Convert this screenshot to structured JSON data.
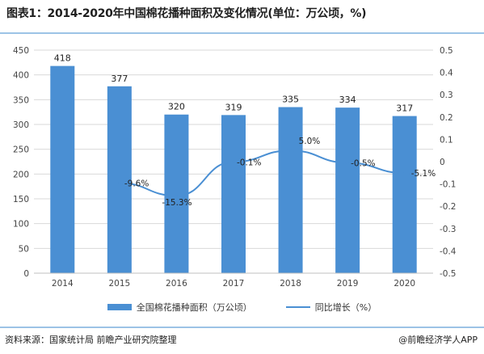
{
  "title": "图表1：2014-2020年中国棉花播种面积及变化情况(单位：万公顷，%)",
  "source": "资料来源：国家统计局 前瞻产业研究院整理",
  "brand": "@前瞻经济学人APP",
  "legend": {
    "bar": "全国棉花播种面积（万公顷）",
    "line": "同比增长（%）"
  },
  "colors": {
    "bar": "#4a8fd3",
    "line": "#4a8fd3",
    "grid": "#d9d9d9"
  },
  "chart_data": {
    "type": "bar",
    "categories": [
      "2014",
      "2015",
      "2016",
      "2017",
      "2018",
      "2019",
      "2020"
    ],
    "series": [
      {
        "name": "全国棉花播种面积（万公顷）",
        "type": "bar",
        "axis": "left",
        "values": [
          418,
          377,
          320,
          319,
          335,
          334,
          317
        ]
      },
      {
        "name": "同比增长（%）",
        "type": "line",
        "axis": "right",
        "values": [
          null,
          -0.096,
          -0.153,
          -0.001,
          0.05,
          -0.005,
          -0.051
        ]
      }
    ],
    "bar_labels": [
      "418",
      "377",
      "320",
      "319",
      "335",
      "334",
      "317"
    ],
    "line_labels": [
      "",
      "-9.6%",
      "-15.3%",
      "-0.1%",
      "5.0%",
      "-0.5%",
      "-5.1%"
    ],
    "y_left": {
      "min": 0,
      "max": 450,
      "ticks": [
        "0",
        "50",
        "100",
        "150",
        "200",
        "250",
        "300",
        "350",
        "400",
        "450"
      ]
    },
    "y_right": {
      "min": -0.5,
      "max": 0.5,
      "ticks": [
        "-0.5",
        "-0.4",
        "-0.3",
        "-0.2",
        "-0.1",
        "0",
        "0.1",
        "0.2",
        "0.3",
        "0.4",
        "0.5"
      ]
    },
    "grid": true
  }
}
